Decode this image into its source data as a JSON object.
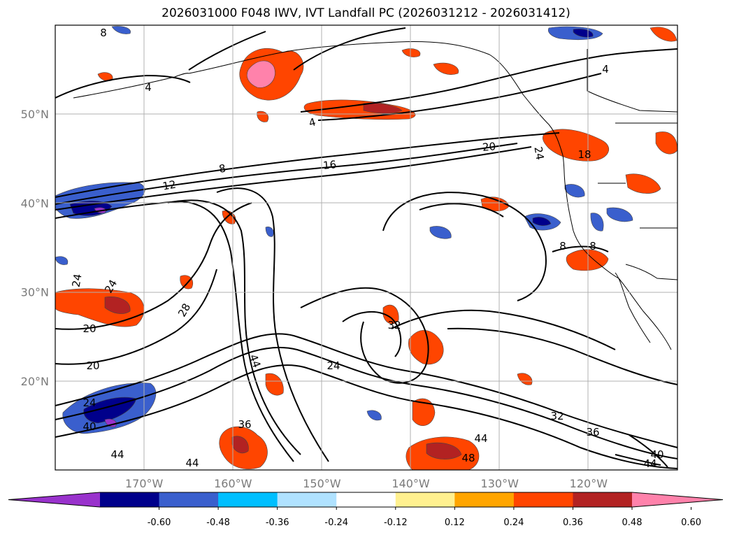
{
  "title": "2026031000 F048 IWV, IVT Landfall PC (2026031212 - 2026031412)",
  "chart_data": {
    "type": "contour-map",
    "title": "2026031000 F048 IWV, IVT Landfall PC (2026031212 - 2026031412)",
    "lat_range": [
      10,
      60
    ],
    "lon_range": [
      -180,
      -110
    ],
    "lat_ticks": [
      "50°N",
      "40°N",
      "30°N",
      "20°N"
    ],
    "lat_values": [
      50,
      40,
      30,
      20
    ],
    "lon_ticks": [
      "170°W",
      "160°W",
      "150°W",
      "140°W",
      "130°W",
      "120°W"
    ],
    "lon_values": [
      -170,
      -160,
      -150,
      -140,
      -130,
      -120
    ],
    "grid": true,
    "colorbar": {
      "labels": [
        "-0.60",
        "-0.48",
        "-0.36",
        "-0.24",
        "-0.12",
        "0.12",
        "0.24",
        "0.36",
        "0.48",
        "0.60"
      ],
      "colors": [
        "#9932cc",
        "#00008b",
        "#3a5fcd",
        "#00bfff",
        "#b0e2ff",
        "#ffffff",
        "#fff08f",
        "#ffa500",
        "#ff4500",
        "#b22222",
        "#ff82ab"
      ],
      "extend": "both"
    },
    "contour_labels": [
      "8",
      "4",
      "4",
      "4",
      "8",
      "12",
      "16",
      "20",
      "24",
      "18",
      "8",
      "8",
      "24",
      "24",
      "28",
      "20",
      "20",
      "24",
      "40",
      "44",
      "44",
      "44",
      "36",
      "32",
      "24",
      "32",
      "36",
      "44",
      "48",
      "40",
      "44"
    ]
  }
}
